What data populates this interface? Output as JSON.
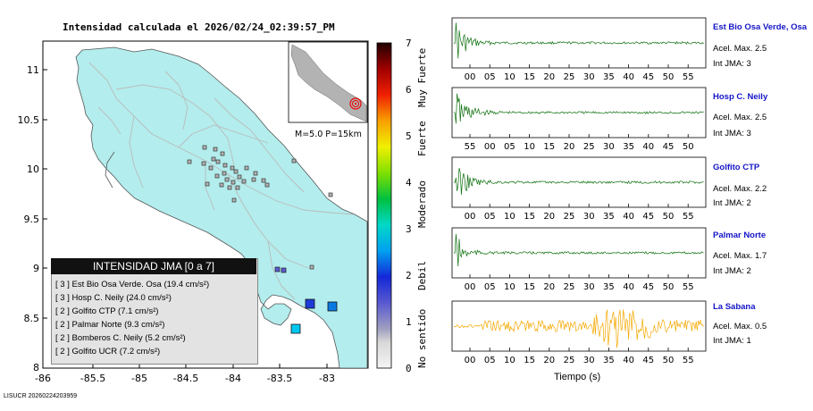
{
  "title": "Intensidad calculada el 2026/02/24_02:39:57_PM",
  "footer": "LISUCR 20260224203959",
  "map": {
    "lat_ticks": [
      "11",
      "10.5",
      "10",
      "9.5",
      "9",
      "8.5",
      "8"
    ],
    "lon_ticks": [
      "-86",
      "-85.5",
      "-85",
      "-84.5",
      "-84",
      "-83.5",
      "-83"
    ],
    "land_color": "#b3eded",
    "inset_label": "M=5.0 P=15km"
  },
  "legend": {
    "title": "INTENSIDAD JMA [0 a 7]",
    "rows": [
      "[ 3 ]  Est Bio Osa Verde. Osa (19.4 cm/s²)",
      "[ 3 ]  Hosp C. Neily (24.0 cm/s²)",
      "[ 2 ]  Golfito CTP (7.1 cm/s²)",
      "[ 2 ]  Palmar Norte (9.3 cm/s²)",
      "[ 2 ]  Bomberos C. Neily (5.2 cm/s²)",
      "[ 2 ]  Golfito UCR (7.2 cm/s²)"
    ]
  },
  "scale": {
    "ticks": [
      "0",
      "1",
      "2",
      "3",
      "4",
      "5",
      "6",
      "7"
    ],
    "labels": [
      "No sentido",
      "Debil",
      "Moderado",
      "Fuerte",
      "Muy Fuerte"
    ]
  },
  "seismograms": {
    "xlabel": "Tiempo (s)",
    "stations": [
      {
        "name": "Est Bio Osa Verde, Osa",
        "acel": "Acel. Max. 2.5",
        "jma": "Int JMA: 3",
        "color": "#0a6e0a",
        "ticks": [
          "00",
          "05",
          "10",
          "15",
          "20",
          "25",
          "30",
          "35",
          "40",
          "45",
          "50",
          "55"
        ]
      },
      {
        "name": "Hosp C. Neily",
        "acel": "Acel. Max. 2.5",
        "jma": "Int JMA: 3",
        "color": "#0a6e0a",
        "ticks": [
          "55",
          "00",
          "05",
          "10",
          "15",
          "20",
          "25",
          "30",
          "35",
          "40",
          "45",
          "50"
        ]
      },
      {
        "name": "Golfito CTP",
        "acel": "Acel. Max. 2.2",
        "jma": "Int JMA: 2",
        "color": "#0a6e0a",
        "ticks": [
          "00",
          "05",
          "10",
          "15",
          "20",
          "25",
          "30",
          "35",
          "40",
          "45",
          "50",
          "55"
        ]
      },
      {
        "name": "Palmar Norte",
        "acel": "Acel. Max. 1.7",
        "jma": "Int JMA: 2",
        "color": "#0a6e0a",
        "ticks": [
          "00",
          "05",
          "10",
          "15",
          "20",
          "25",
          "30",
          "35",
          "40",
          "45",
          "50",
          "55"
        ]
      },
      {
        "name": "La Sabana",
        "acel": "Acel. Max. 0.5",
        "jma": "Int JMA: 1",
        "color": "#f5a800",
        "ticks": [
          "00",
          "05",
          "10",
          "15",
          "20",
          "25",
          "30",
          "35",
          "40",
          "45",
          "50",
          "55"
        ]
      }
    ]
  }
}
